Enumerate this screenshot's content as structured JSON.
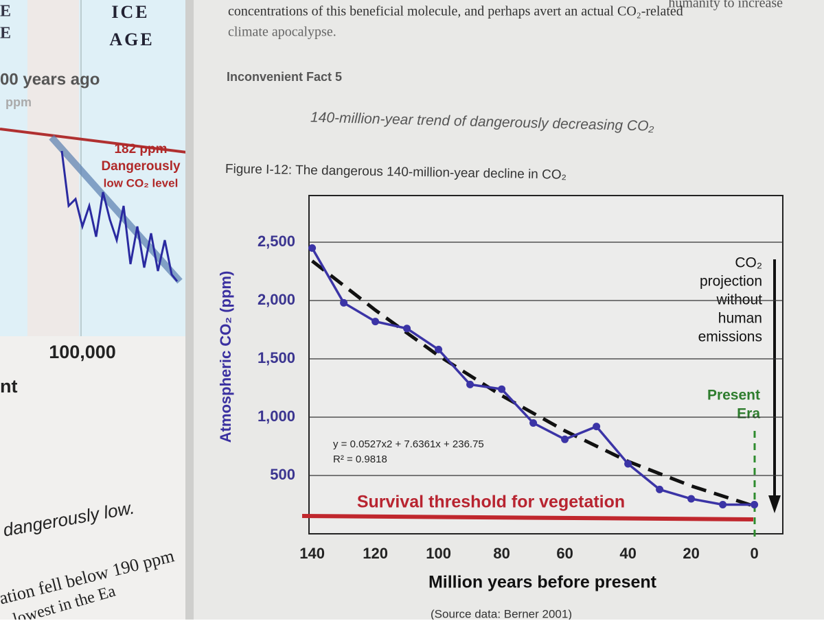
{
  "left_page": {
    "texts": [
      "E",
      "E",
      "ICE",
      "AGE",
      "00 years ago",
      "ppm",
      "182 ppm",
      "Dangerously",
      "low CO₂ level",
      "100,000",
      "nt",
      "dangerously low.",
      "ation fell below 190 ppm",
      "lowest in the Ea"
    ]
  },
  "right_page": {
    "top_lines": [
      "humanity to increase",
      "concentrations of this beneficial molecule, and perhaps avert an actual CO₂-related",
      "climate apocalypse."
    ],
    "heading": "Inconvenient Fact 5",
    "subheading": "140-million-year trend of dangerously decreasing CO₂",
    "caption": "Figure I-12: The dangerous 140-million-year decline in CO₂",
    "source": "(Source data: Berner 2001)"
  },
  "chart_data": {
    "type": "line",
    "x_label": "Million years before present",
    "y_label": "Atmospheric CO₂ (ppm)",
    "x": [
      140,
      130,
      120,
      110,
      100,
      90,
      80,
      70,
      60,
      50,
      40,
      30,
      20,
      10,
      0
    ],
    "series": [
      {
        "color": "#3b34a6",
        "values": [
          2450,
          1980,
          1820,
          1760,
          1580,
          1280,
          1240,
          950,
          810,
          920,
          600,
          380,
          300,
          250,
          250
        ]
      }
    ],
    "trend": {
      "x": [
        140,
        120,
        100,
        80,
        60,
        40,
        20,
        0
      ],
      "values": [
        2339,
        1918,
        1527,
        1185,
        883,
        621,
        410,
        237
      ],
      "color": "#111111"
    },
    "equation": "y = 0.0527x2 + 7.6361x + 236.75",
    "r_squared": "R² = 0.9818",
    "threshold_label": "Survival threshold for vegetation",
    "projection_label": [
      "CO₂",
      "projection",
      "without",
      "human",
      "emissions"
    ],
    "present_label": [
      "Present",
      "Era"
    ],
    "xlim": [
      141,
      -9
    ],
    "ylim": [
      0,
      2900
    ],
    "xticks": [
      140,
      120,
      100,
      80,
      60,
      40,
      20,
      0
    ],
    "yticks": [
      500,
      {
        "value": 1000,
        "label": "1,000"
      },
      {
        "value": 1500,
        "label": "1,500"
      },
      {
        "value": 2000,
        "label": "2,000"
      },
      {
        "value": 2500,
        "label": "2,500"
      }
    ],
    "grid": true
  }
}
